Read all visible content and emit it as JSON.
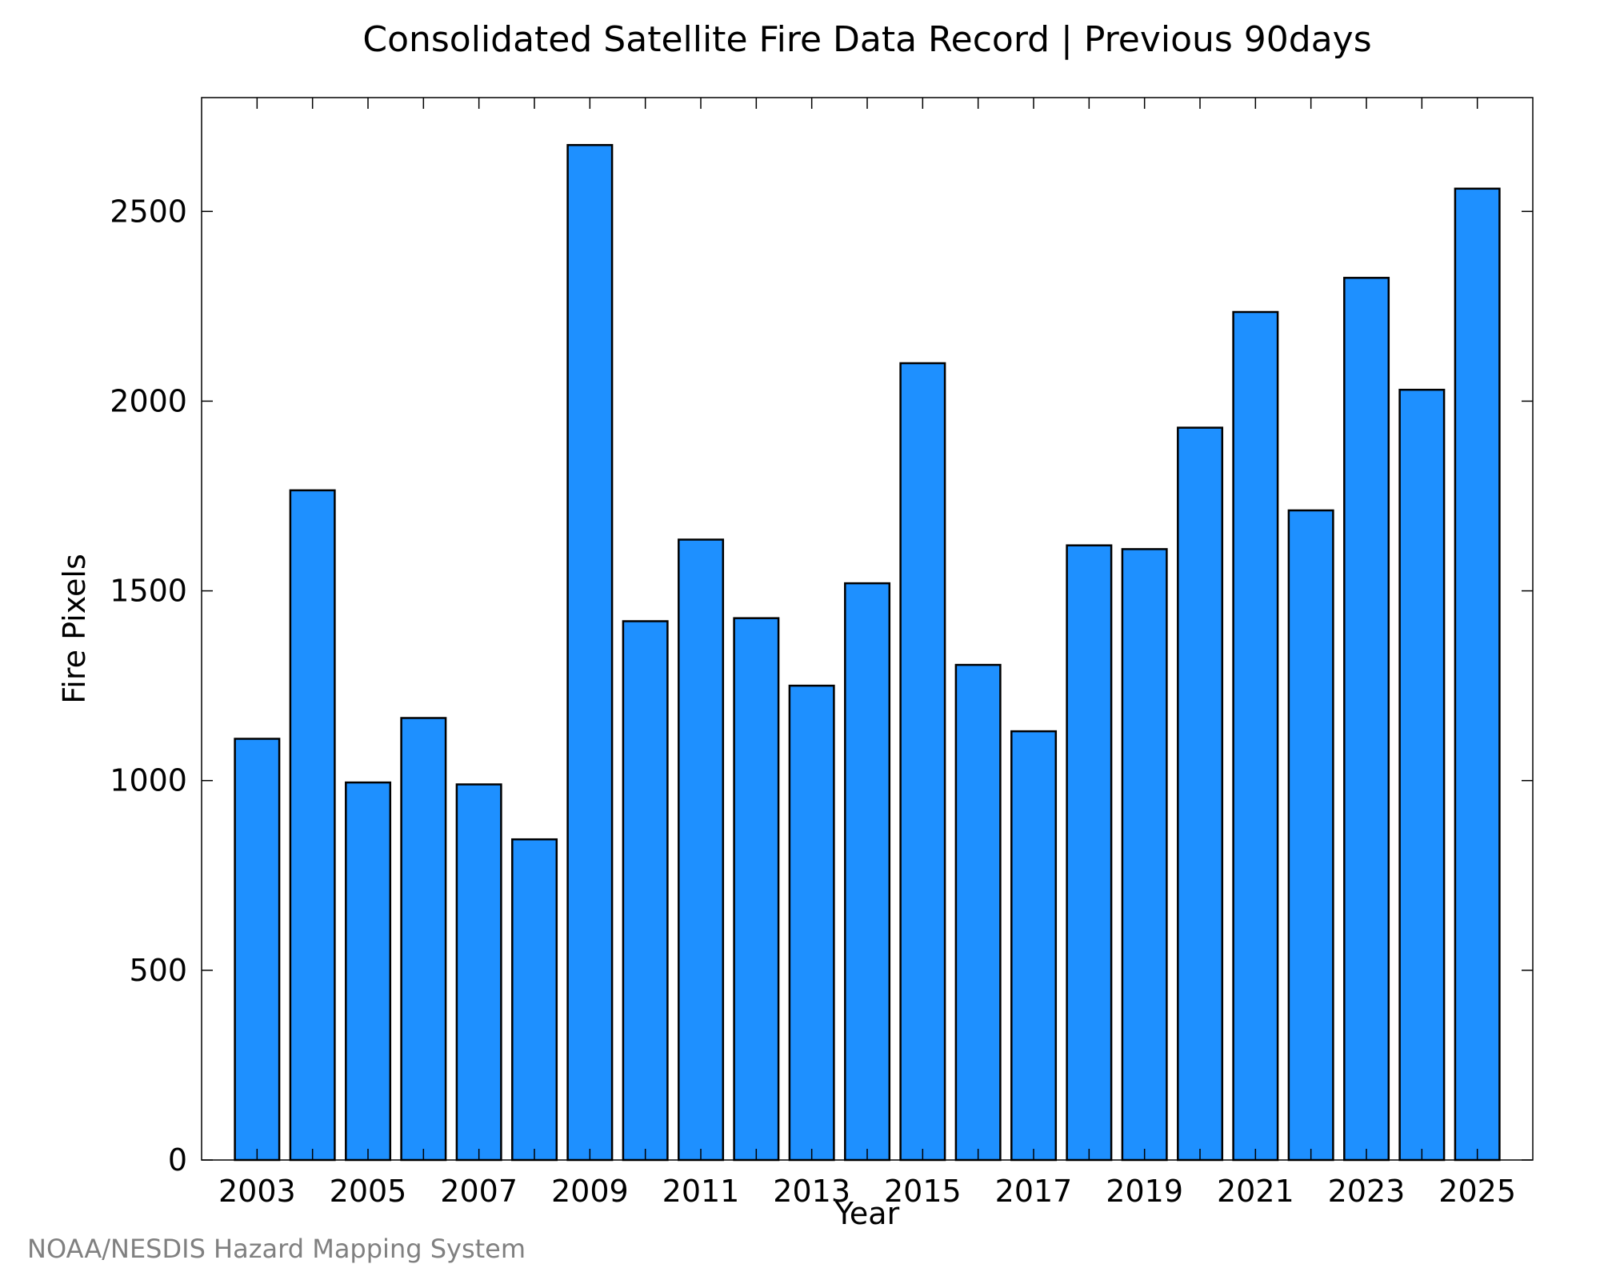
{
  "chart_data": {
    "type": "bar",
    "title": "Consolidated Satellite Fire Data Record | Previous 90days",
    "xlabel": "Year",
    "ylabel": "Fire Pixels",
    "categories": [
      "2003",
      "2004",
      "2005",
      "2006",
      "2007",
      "2008",
      "2009",
      "2010",
      "2011",
      "2012",
      "2013",
      "2014",
      "2015",
      "2016",
      "2017",
      "2018",
      "2019",
      "2020",
      "2021",
      "2022",
      "2023",
      "2024",
      "2025"
    ],
    "values": [
      1110,
      1765,
      995,
      1165,
      990,
      845,
      2675,
      1420,
      1635,
      1428,
      1250,
      1520,
      2100,
      1305,
      1130,
      1620,
      1610,
      1930,
      2235,
      1712,
      2325,
      2030,
      2560
    ],
    "x_tick_labels": [
      "2003",
      "2005",
      "2007",
      "2009",
      "2011",
      "2013",
      "2015",
      "2017",
      "2019",
      "2021",
      "2023",
      "2025"
    ],
    "y_ticks": [
      0,
      500,
      1000,
      1500,
      2000,
      2500
    ],
    "y_tick_labels": [
      "0",
      "500",
      "1000",
      "1500",
      "2000",
      "2500"
    ],
    "ylim": [
      0,
      2800
    ],
    "grid": false,
    "legend": "none",
    "bar_color": "#1E90FF",
    "edge_color": "#000000"
  },
  "credit": "NOAA/NESDIS Hazard Mapping System"
}
